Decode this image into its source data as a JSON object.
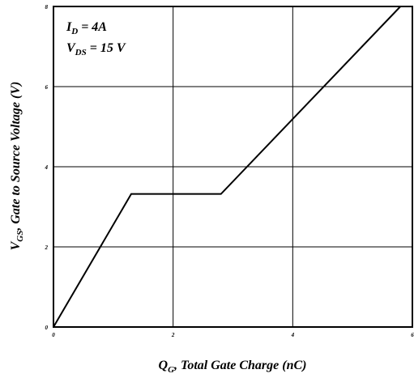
{
  "chart_data": {
    "type": "line",
    "title": "",
    "xlabel": {
      "main": "Q",
      "sub": "G",
      "rest": ", Total Gate Charge (nC)"
    },
    "ylabel": {
      "main": "V",
      "sub": "GS",
      "rest": ", Gate to Source Voltage (V)"
    },
    "xlim": [
      0,
      6
    ],
    "ylim": [
      0,
      8
    ],
    "xticks": [
      "0",
      "2",
      "4",
      "6"
    ],
    "yticks": [
      "0",
      "2",
      "4",
      "6",
      "8"
    ],
    "grid": true,
    "annotations": [
      {
        "main": "I",
        "sub": "D",
        "rest": " = 4A"
      },
      {
        "main": "V",
        "sub": "DS",
        "rest": " = 15 V"
      }
    ],
    "series": [
      {
        "x": [
          0,
          1.3,
          2.8,
          5.8
        ],
        "y": [
          0,
          3.32,
          3.32,
          8
        ]
      }
    ],
    "line_color": "#000000"
  }
}
